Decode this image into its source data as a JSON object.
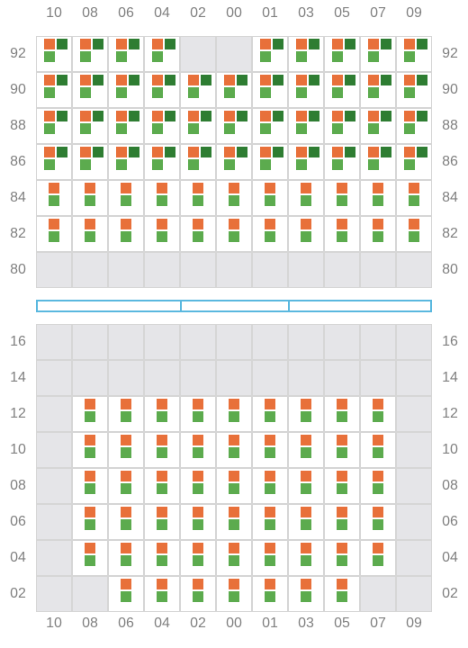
{
  "colors": {
    "orange": "#e8703a",
    "dark_green": "#2e7d32",
    "light_green": "#5cab4e",
    "empty_cell": "#e5e5e8",
    "grid_line": "#d6d6d6",
    "aisle": "#5ab8df",
    "label": "#808080"
  },
  "columns": [
    "10",
    "08",
    "06",
    "04",
    "02",
    "00",
    "01",
    "03",
    "05",
    "07",
    "09"
  ],
  "upper": {
    "rows": [
      {
        "label": "92",
        "cells": [
          "dense",
          "dense",
          "dense",
          "dense",
          "empty",
          "empty",
          "dense",
          "dense",
          "dense",
          "dense",
          "dense"
        ]
      },
      {
        "label": "90",
        "cells": [
          "dense",
          "dense",
          "dense",
          "dense",
          "dense",
          "dense",
          "dense",
          "dense",
          "dense",
          "dense",
          "dense"
        ]
      },
      {
        "label": "88",
        "cells": [
          "dense",
          "dense",
          "dense",
          "dense",
          "dense",
          "dense",
          "dense",
          "dense",
          "dense",
          "dense",
          "dense"
        ]
      },
      {
        "label": "86",
        "cells": [
          "dense",
          "dense",
          "dense",
          "dense",
          "dense",
          "dense",
          "dense",
          "dense",
          "dense",
          "dense",
          "dense"
        ]
      },
      {
        "label": "84",
        "cells": [
          "sparse",
          "sparse",
          "sparse",
          "sparse",
          "sparse",
          "sparse",
          "sparse",
          "sparse",
          "sparse",
          "sparse",
          "sparse"
        ]
      },
      {
        "label": "82",
        "cells": [
          "sparse",
          "sparse",
          "sparse",
          "sparse",
          "sparse",
          "sparse",
          "sparse",
          "sparse",
          "sparse",
          "sparse",
          "sparse"
        ]
      },
      {
        "label": "80",
        "cells": [
          "empty",
          "empty",
          "empty",
          "empty",
          "empty",
          "empty",
          "empty",
          "empty",
          "empty",
          "empty",
          "empty"
        ]
      }
    ]
  },
  "lower": {
    "rows": [
      {
        "label": "16",
        "cells": [
          "empty",
          "empty",
          "empty",
          "empty",
          "empty",
          "empty",
          "empty",
          "empty",
          "empty",
          "empty",
          "empty"
        ]
      },
      {
        "label": "14",
        "cells": [
          "empty",
          "empty",
          "empty",
          "empty",
          "empty",
          "empty",
          "empty",
          "empty",
          "empty",
          "empty",
          "empty"
        ]
      },
      {
        "label": "12",
        "cells": [
          "empty",
          "sparse",
          "sparse",
          "sparse",
          "sparse",
          "sparse",
          "sparse",
          "sparse",
          "sparse",
          "sparse",
          "empty"
        ]
      },
      {
        "label": "10",
        "cells": [
          "empty",
          "sparse",
          "sparse",
          "sparse",
          "sparse",
          "sparse",
          "sparse",
          "sparse",
          "sparse",
          "sparse",
          "empty"
        ]
      },
      {
        "label": "08",
        "cells": [
          "empty",
          "sparse",
          "sparse",
          "sparse",
          "sparse",
          "sparse",
          "sparse",
          "sparse",
          "sparse",
          "sparse",
          "empty"
        ]
      },
      {
        "label": "06",
        "cells": [
          "empty",
          "sparse",
          "sparse",
          "sparse",
          "sparse",
          "sparse",
          "sparse",
          "sparse",
          "sparse",
          "sparse",
          "empty"
        ]
      },
      {
        "label": "04",
        "cells": [
          "empty",
          "sparse",
          "sparse",
          "sparse",
          "sparse",
          "sparse",
          "sparse",
          "sparse",
          "sparse",
          "sparse",
          "empty"
        ]
      },
      {
        "label": "02",
        "cells": [
          "empty",
          "empty",
          "sparse",
          "sparse",
          "sparse",
          "sparse",
          "sparse",
          "sparse",
          "sparse",
          "empty",
          "empty"
        ]
      }
    ]
  }
}
